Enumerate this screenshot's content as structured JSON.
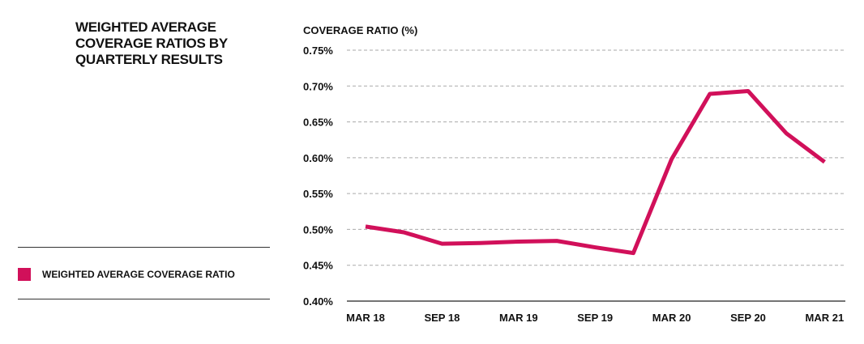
{
  "title": "WEIGHTED AVERAGE COVERAGE RATIOS BY QUARTERLY RESULTS",
  "legend": {
    "label": "WEIGHTED AVERAGE COVERAGE RATIO",
    "color": "#d1105a"
  },
  "chart_data": {
    "type": "line",
    "ylabel": "COVERAGE RATIO (%)",
    "ylim": [
      0.4,
      0.75
    ],
    "yticks": [
      "0.40%",
      "0.45%",
      "0.50%",
      "0.55%",
      "0.60%",
      "0.65%",
      "0.70%",
      "0.75%"
    ],
    "xticks": [
      "MAR 18",
      "SEP 18",
      "MAR 19",
      "SEP 19",
      "MAR 20",
      "SEP 20",
      "MAR 21"
    ],
    "grid": true,
    "legend_position": "left",
    "x": [
      "MAR 18",
      "JUN 18",
      "SEP 18",
      "DEC 18",
      "MAR 19",
      "JUN 19",
      "SEP 19",
      "DEC 19",
      "MAR 20",
      "JUN 20",
      "SEP 20",
      "DEC 20",
      "MAR 21"
    ],
    "series": [
      {
        "name": "WEIGHTED AVERAGE COVERAGE RATIO",
        "color": "#d1105a",
        "values": [
          0.504,
          0.496,
          0.48,
          0.481,
          0.483,
          0.484,
          0.475,
          0.467,
          0.598,
          0.689,
          0.693,
          0.634,
          0.594
        ]
      }
    ]
  }
}
